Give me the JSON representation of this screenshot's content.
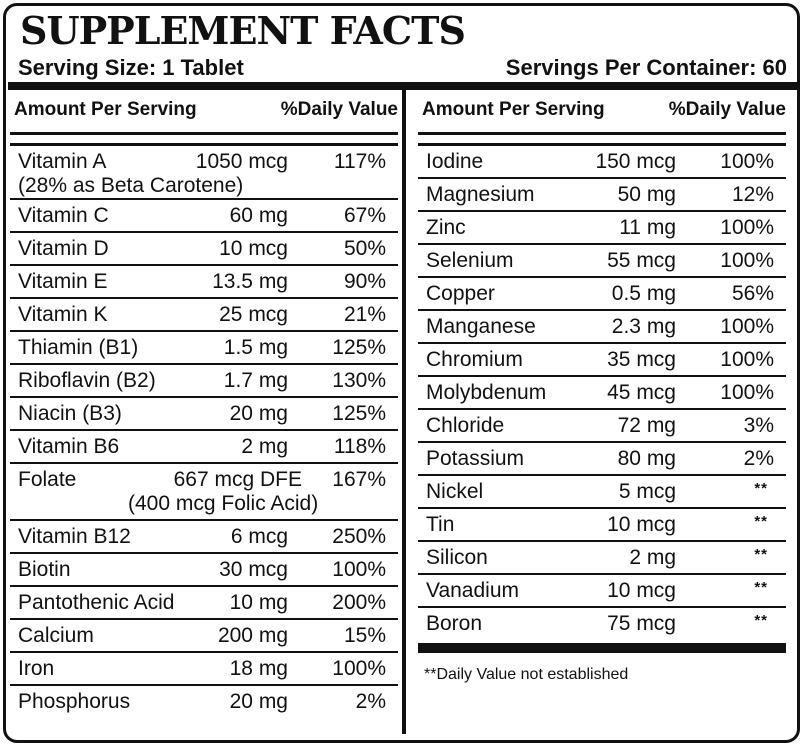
{
  "title": "SUPPLEMENT FACTS",
  "serving_size": "Serving Size: 1 Tablet",
  "servings_per_container": "Servings Per Container: 60",
  "header": {
    "amount": "Amount Per Serving",
    "daily": "%Daily Value"
  },
  "left_rows": [
    {
      "name": "Vitamin A",
      "qty": "1050 mcg",
      "dv": "117%",
      "note": "(28% as Beta Carotene)"
    },
    {
      "name": "Vitamin C",
      "qty": "60 mg",
      "dv": "67%"
    },
    {
      "name": "Vitamin D",
      "qty": "10 mcg",
      "dv": "50%"
    },
    {
      "name": "Vitamin E",
      "qty": "13.5 mg",
      "dv": "90%"
    },
    {
      "name": "Vitamin K",
      "qty": "25 mcg",
      "dv": "21%"
    },
    {
      "name": "Thiamin (B1)",
      "qty": "1.5 mg",
      "dv": "125%"
    },
    {
      "name": "Riboflavin (B2)",
      "qty": "1.7 mg",
      "dv": "130%"
    },
    {
      "name": "Niacin (B3)",
      "qty": "20 mg",
      "dv": "125%"
    },
    {
      "name": "Vitamin B6",
      "qty": "2 mg",
      "dv": "118%"
    },
    {
      "name": "Folate",
      "qty": "667 mcg DFE",
      "dv": "167%",
      "note": "(400 mcg Folic Acid)"
    },
    {
      "name": "Vitamin B12",
      "qty": "6 mcg",
      "dv": "250%"
    },
    {
      "name": "Biotin",
      "qty": "30 mcg",
      "dv": "100%"
    },
    {
      "name": "Pantothenic Acid",
      "qty": "10 mg",
      "dv": "200%"
    },
    {
      "name": "Calcium",
      "qty": "200 mg",
      "dv": "15%"
    },
    {
      "name": "Iron",
      "qty": "18 mg",
      "dv": "100%"
    },
    {
      "name": "Phosphorus",
      "qty": "20 mg",
      "dv": "2%"
    }
  ],
  "right_rows": [
    {
      "name": "Iodine",
      "qty": "150 mcg",
      "dv": "100%"
    },
    {
      "name": "Magnesium",
      "qty": "50 mg",
      "dv": "12%"
    },
    {
      "name": "Zinc",
      "qty": "11 mg",
      "dv": "100%"
    },
    {
      "name": "Selenium",
      "qty": "55 mcg",
      "dv": "100%"
    },
    {
      "name": "Copper",
      "qty": "0.5 mg",
      "dv": "56%"
    },
    {
      "name": "Manganese",
      "qty": "2.3 mg",
      "dv": "100%"
    },
    {
      "name": "Chromium",
      "qty": "35 mcg",
      "dv": "100%"
    },
    {
      "name": "Molybdenum",
      "qty": "45 mcg",
      "dv": "100%"
    },
    {
      "name": "Chloride",
      "qty": "72 mg",
      "dv": "3%"
    },
    {
      "name": "Potassium",
      "qty": "80 mg",
      "dv": "2%"
    },
    {
      "name": "Nickel",
      "qty": "5 mcg",
      "dv": "**"
    },
    {
      "name": "Tin",
      "qty": "10 mcg",
      "dv": "**"
    },
    {
      "name": "Silicon",
      "qty": "2 mg",
      "dv": "**"
    },
    {
      "name": "Vanadium",
      "qty": "10 mcg",
      "dv": "**"
    },
    {
      "name": "Boron",
      "qty": "75 mcg",
      "dv": "**"
    }
  ],
  "footnote": "**Daily Value not established"
}
